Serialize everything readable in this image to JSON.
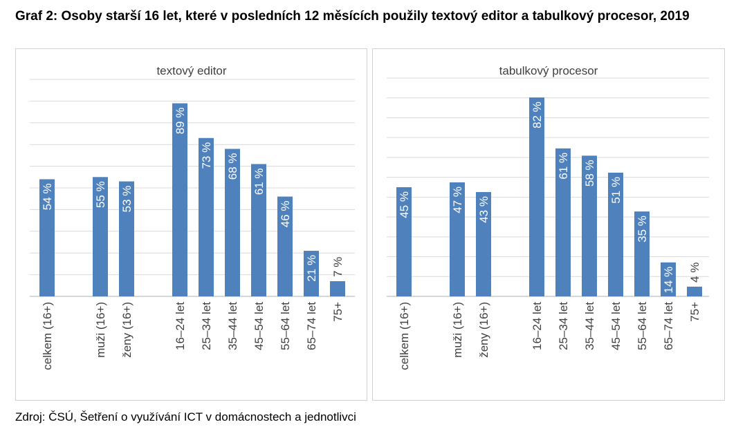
{
  "heading": "Graf 2: Osoby starší 16 let, které v posledních 12 měsících použily textový editor a tabulkový procesor, 2019",
  "source": "Zdroj: ČSÚ, Šetření o využívání ICT v domácnostech a jednotlivci",
  "colors": {
    "bar": "#4f81bd",
    "grid": "#d9d9d9",
    "axis": "#bfbfbf",
    "text": "#404040"
  },
  "chart_data": [
    {
      "type": "bar",
      "title": "textový editor",
      "categories": [
        "celkem (16+)",
        "muži (16+)",
        "ženy (16+)",
        "16–24 let",
        "25–34 let",
        "35–44 let",
        "45–54 let",
        "55–64 let",
        "65–74 let",
        "75+"
      ],
      "values": [
        54,
        55,
        53,
        89,
        73,
        68,
        61,
        46,
        21,
        7
      ],
      "value_labels": [
        "54 %",
        "55 %",
        "53 %",
        "89 %",
        "73 %",
        "68 %",
        "61 %",
        "46 %",
        "21 %",
        "7 %"
      ],
      "ylim": [
        0,
        100
      ],
      "grid": true,
      "legend": "none"
    },
    {
      "type": "bar",
      "title": "tabulkový procesor",
      "categories": [
        "celkem (16+)",
        "muži (16+)",
        "ženy (16+)",
        "16–24 let",
        "25–34 let",
        "35–44 let",
        "45–54 let",
        "55–64 let",
        "65–74 let",
        "75+"
      ],
      "values": [
        45,
        47,
        43,
        82,
        61,
        58,
        51,
        35,
        14,
        4
      ],
      "value_labels": [
        "45 %",
        "47 %",
        "43 %",
        "82 %",
        "61 %",
        "58 %",
        "51 %",
        "35 %",
        "14 %",
        "4 %"
      ],
      "ylim": [
        0,
        90
      ],
      "grid": true,
      "legend": "none"
    }
  ]
}
